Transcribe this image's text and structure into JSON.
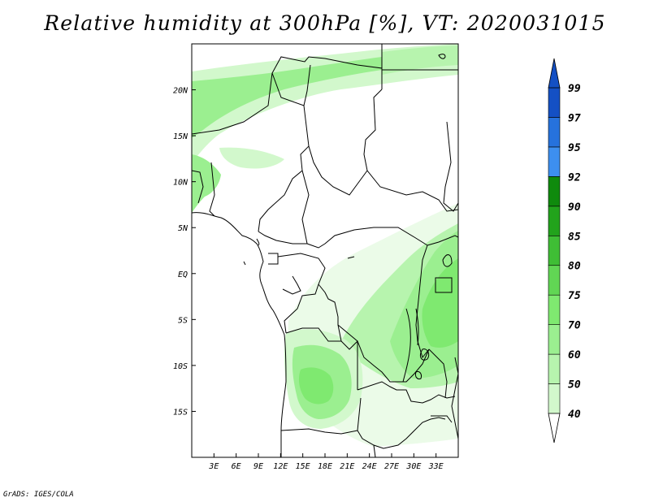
{
  "title": "Relative humidity at 300hPa [%], VT: 2020031015",
  "credit": "GrADS: IGES/COLA",
  "map": {
    "lon_range": [
      0,
      36
    ],
    "lat_range": [
      -20,
      25
    ],
    "x_ticks": [
      "3E",
      "6E",
      "9E",
      "12E",
      "15E",
      "18E",
      "21E",
      "24E",
      "27E",
      "30E",
      "33E"
    ],
    "y_ticks": [
      "15S",
      "10S",
      "5S",
      "EQ",
      "5N",
      "10N",
      "15N",
      "20N"
    ]
  },
  "colorbar": {
    "labels": [
      "40",
      "50",
      "60",
      "70",
      "75",
      "80",
      "85",
      "90",
      "92",
      "95",
      "97",
      "99"
    ],
    "colors": [
      "#ebfbe8",
      "#d2f8cc",
      "#b7f4ae",
      "#9bef90",
      "#7fe970",
      "#61d654",
      "#3fbe35",
      "#22a31c",
      "#0f8a0d",
      "#3d8ff0",
      "#2672dd",
      "#1450c4"
    ]
  }
}
